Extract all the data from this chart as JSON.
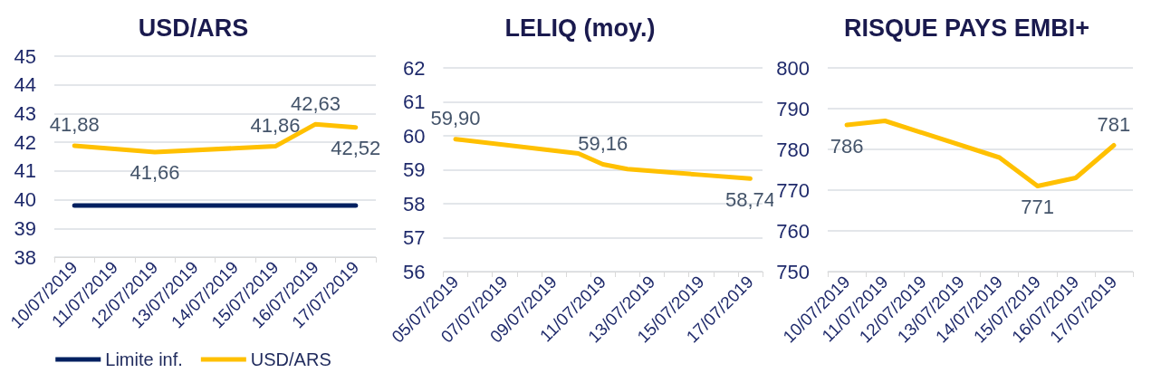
{
  "chart_data": [
    {
      "type": "line",
      "title": "USD/ARS",
      "categories": [
        "10/07/2019",
        "11/07/2019",
        "12/07/2019",
        "13/07/2019",
        "14/07/2019",
        "15/07/2019",
        "16/07/2019",
        "17/07/2019"
      ],
      "series": [
        {
          "name": "Limite inf.",
          "color": "#002060",
          "values": [
            39.8,
            39.8,
            39.8,
            39.8,
            39.8,
            39.8,
            39.8,
            39.8
          ]
        },
        {
          "name": "USD/ARS",
          "color": "#ffc000",
          "values": [
            41.88,
            null,
            41.66,
            null,
            null,
            41.86,
            42.63,
            42.52
          ],
          "value_labels": [
            "41,88",
            null,
            "41,66",
            null,
            null,
            "41,86",
            "42,63",
            "42,52"
          ]
        }
      ],
      "ylim": [
        38,
        45
      ],
      "yticks": [
        38,
        39,
        40,
        41,
        42,
        43,
        44,
        45
      ],
      "grid": "y",
      "legend": "bottom",
      "marker": "none",
      "line_style": "solid"
    },
    {
      "type": "line",
      "title": "LELIQ (moy.)",
      "categories": [
        "05/07/2019",
        null,
        "07/07/2019",
        null,
        "09/07/2019",
        null,
        "11/07/2019",
        null,
        "13/07/2019",
        null,
        "15/07/2019",
        null,
        "17/07/2019"
      ],
      "series": [
        {
          "color": "#ffc000",
          "values": [
            59.9,
            null,
            null,
            null,
            null,
            59.48,
            59.16,
            59.02,
            null,
            null,
            58.85,
            null,
            58.74
          ],
          "value_labels": [
            "59,90",
            null,
            null,
            null,
            null,
            null,
            "59,16",
            null,
            null,
            null,
            null,
            null,
            "58,74"
          ]
        }
      ],
      "ylim": [
        56,
        62
      ],
      "yticks": [
        56,
        57,
        58,
        59,
        60,
        61,
        62
      ],
      "grid": "y",
      "marker": "none",
      "line_style": "solid"
    },
    {
      "type": "line",
      "title": "RISQUE PAYS EMBI+",
      "categories": [
        "10/07/2019",
        "11/07/2019",
        "12/07/2019",
        "13/07/2019",
        "14/07/2019",
        "15/07/2019",
        "16/07/2019",
        "17/07/2019"
      ],
      "series": [
        {
          "color": "#ffc000",
          "values": [
            786,
            787,
            null,
            null,
            778,
            771,
            773,
            781
          ],
          "value_labels": [
            "786",
            null,
            null,
            null,
            null,
            "771",
            null,
            "781"
          ]
        }
      ],
      "ylim": [
        750,
        800
      ],
      "yticks": [
        750,
        760,
        770,
        780,
        790,
        800
      ],
      "grid": "y",
      "marker": "none",
      "line_style": "solid"
    }
  ]
}
